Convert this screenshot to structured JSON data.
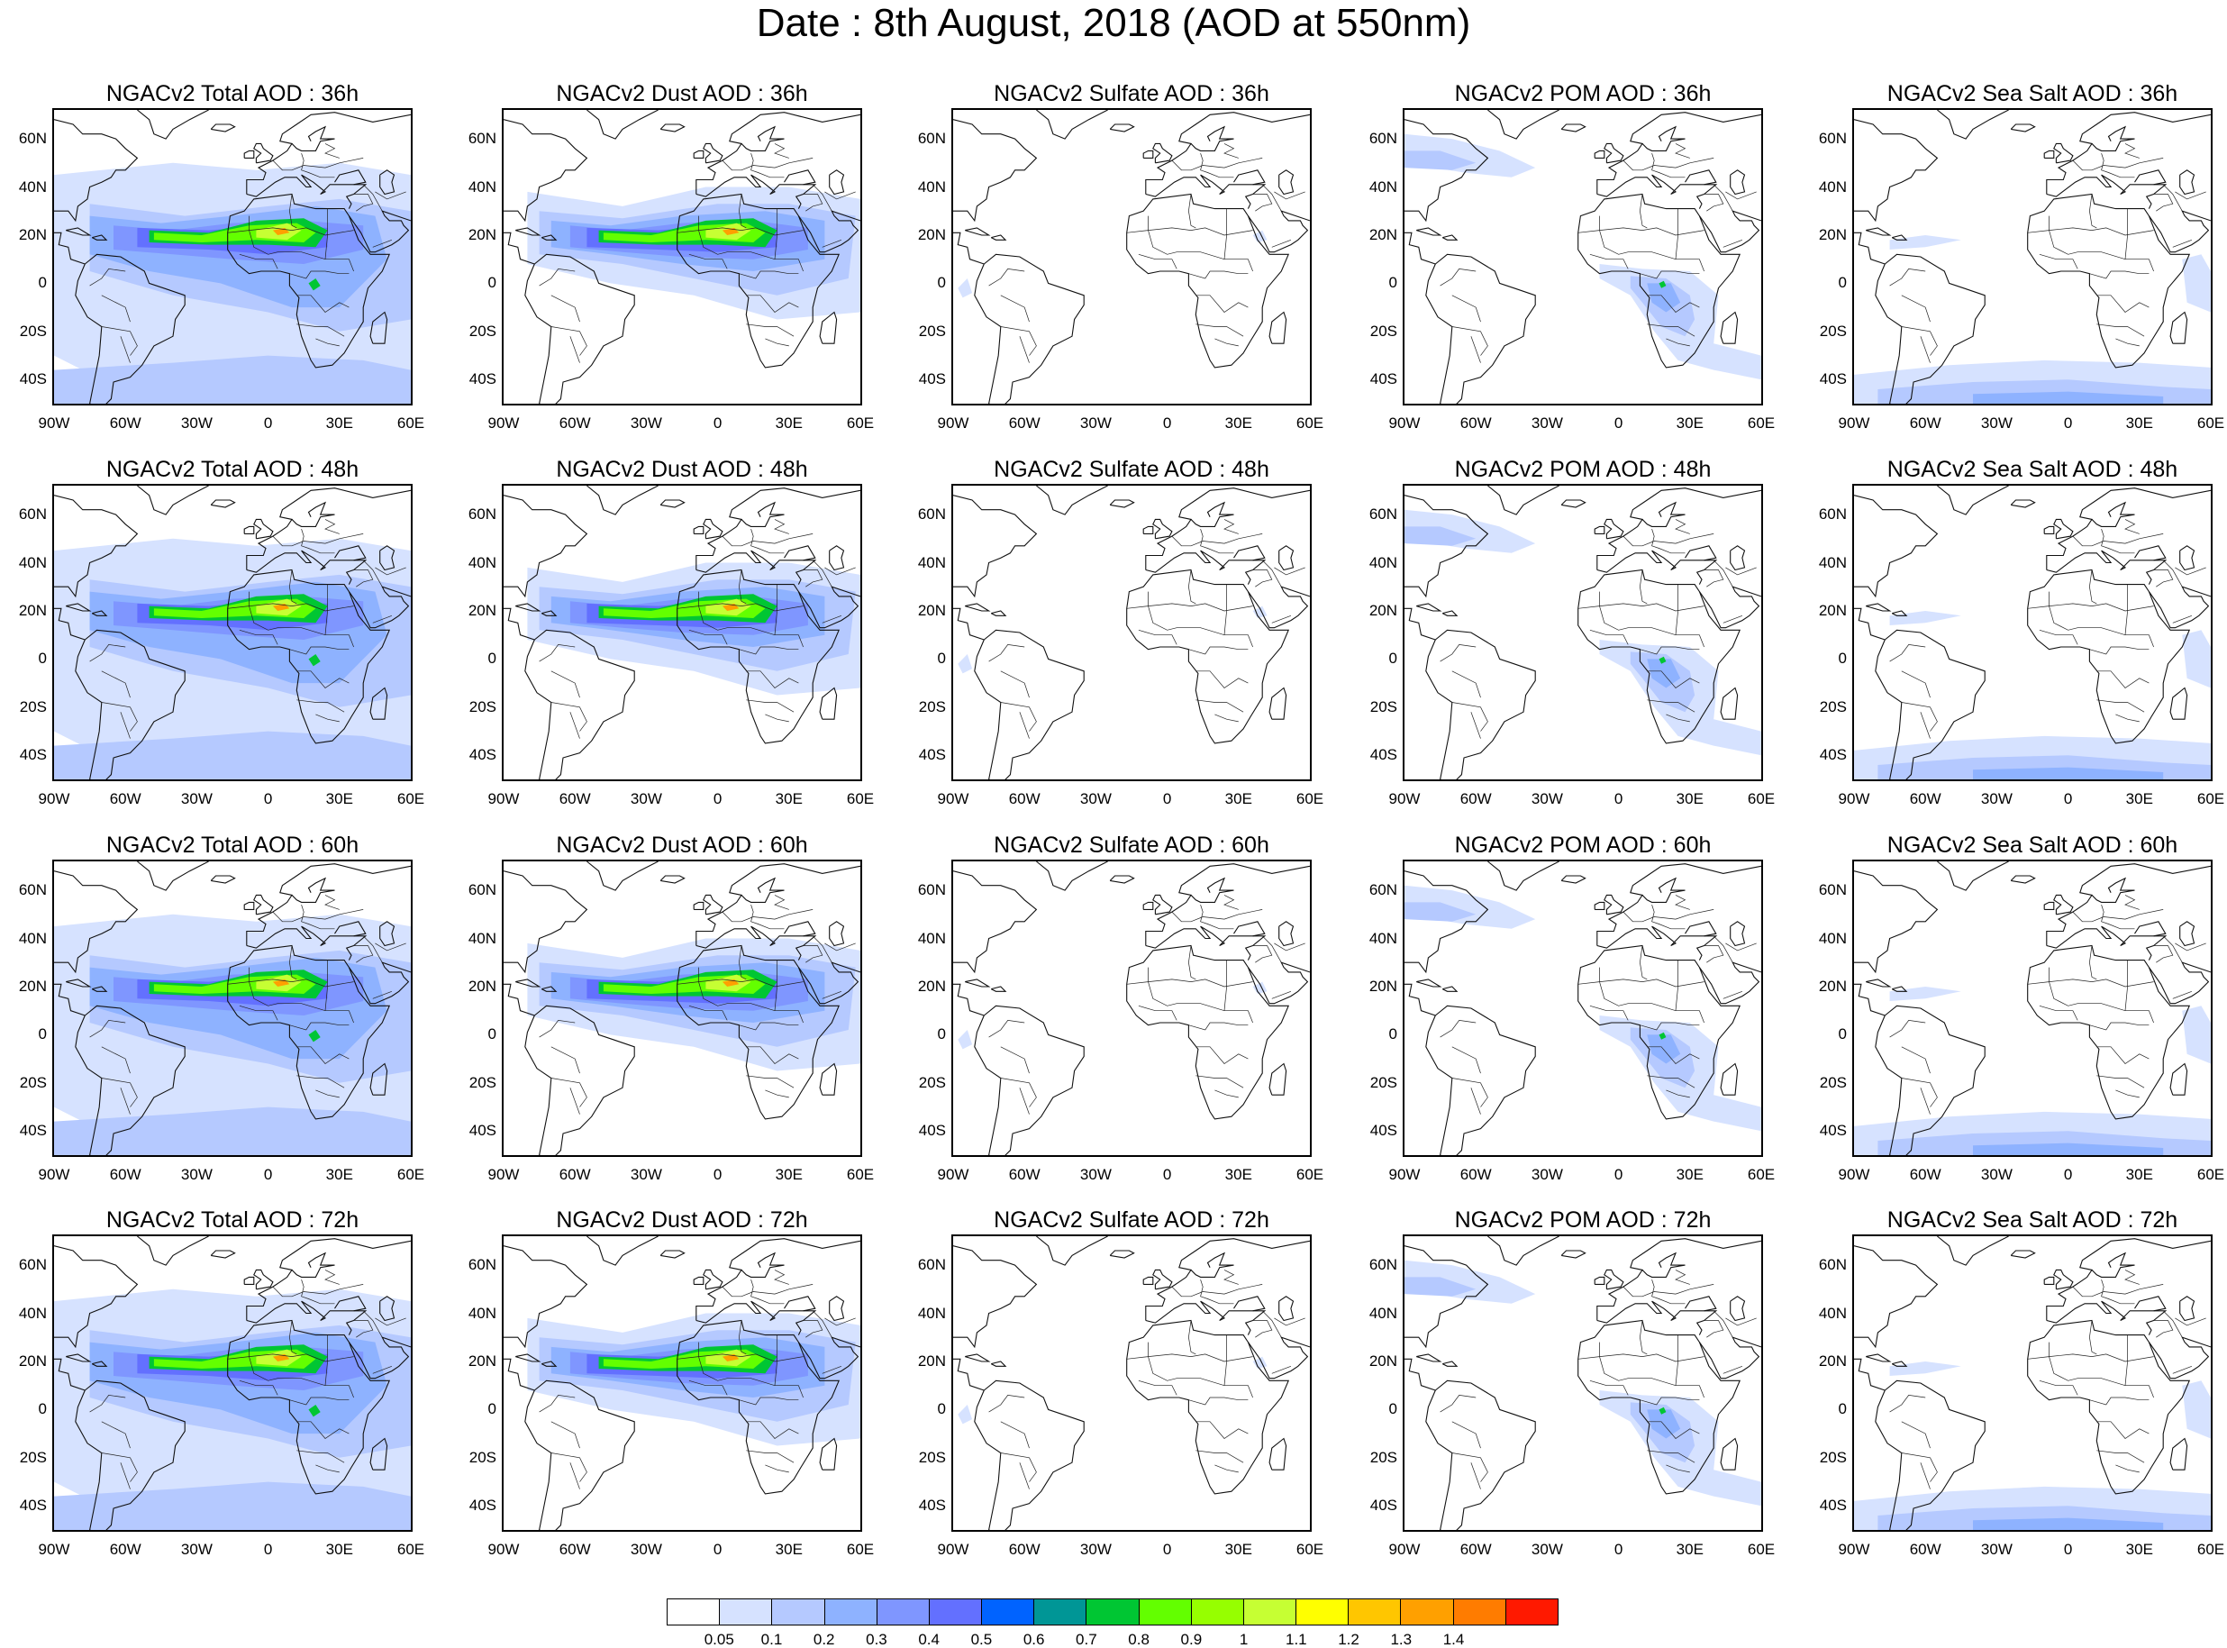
{
  "title": "Date : 8th August, 2018 (AOD at 550nm)",
  "lat_ticks": [
    "60N",
    "40N",
    "20N",
    "0",
    "20S",
    "40S"
  ],
  "lon_ticks": [
    "90W",
    "60W",
    "30W",
    "0",
    "30E",
    "60E"
  ],
  "rows": [
    "36h",
    "48h",
    "60h",
    "72h"
  ],
  "panels": [
    [
      {
        "title": "NGACv2 Total AOD : 36h",
        "species": "total"
      },
      {
        "title": "NGACv2 Dust AOD : 36h",
        "species": "dust"
      },
      {
        "title": "NGACv2 Sulfate AOD : 36h",
        "species": "sulfate"
      },
      {
        "title": "NGACv2 POM AOD : 36h",
        "species": "pom"
      },
      {
        "title": "NGACv2 Sea Salt AOD : 36h",
        "species": "seasalt"
      }
    ],
    [
      {
        "title": "NGACv2 Total AOD : 48h",
        "species": "total"
      },
      {
        "title": "NGACv2 Dust AOD : 48h",
        "species": "dust"
      },
      {
        "title": "NGACv2 Sulfate AOD : 48h",
        "species": "sulfate"
      },
      {
        "title": "NGACv2 POM AOD : 48h",
        "species": "pom"
      },
      {
        "title": "NGACv2 Sea Salt AOD : 48h",
        "species": "seasalt"
      }
    ],
    [
      {
        "title": "NGACv2 Total AOD : 60h",
        "species": "total"
      },
      {
        "title": "NGACv2 Dust AOD : 60h",
        "species": "dust"
      },
      {
        "title": "NGACv2 Sulfate AOD : 60h",
        "species": "sulfate"
      },
      {
        "title": "NGACv2 POM AOD : 60h",
        "species": "pom"
      },
      {
        "title": "NGACv2 Sea Salt AOD : 60h",
        "species": "seasalt"
      }
    ],
    [
      {
        "title": "NGACv2 Total AOD : 72h",
        "species": "total"
      },
      {
        "title": "NGACv2 Dust AOD : 72h",
        "species": "dust"
      },
      {
        "title": "NGACv2 Sulfate AOD : 72h",
        "species": "sulfate"
      },
      {
        "title": "NGACv2 POM AOD : 72h",
        "species": "pom"
      },
      {
        "title": "NGACv2 Sea Salt  AOD : 72h",
        "species": "seasalt"
      }
    ]
  ],
  "colorbar": {
    "labels": [
      "0.05",
      "0.1",
      "0.2",
      "0.3",
      "0.4",
      "0.5",
      "0.6",
      "0.7",
      "0.8",
      "0.9",
      "1",
      "1.1",
      "1.2",
      "1.3",
      "1.4"
    ],
    "colors": [
      "#ffffff",
      "#d6e2ff",
      "#b5c9ff",
      "#8eb2ff",
      "#7f96ff",
      "#6370ff",
      "#0063ff",
      "#009696",
      "#00c633",
      "#63ff00",
      "#96ff00",
      "#c6ff33",
      "#ffff00",
      "#ffc600",
      "#ffa000",
      "#ff7c00",
      "#ff1900"
    ]
  }
}
